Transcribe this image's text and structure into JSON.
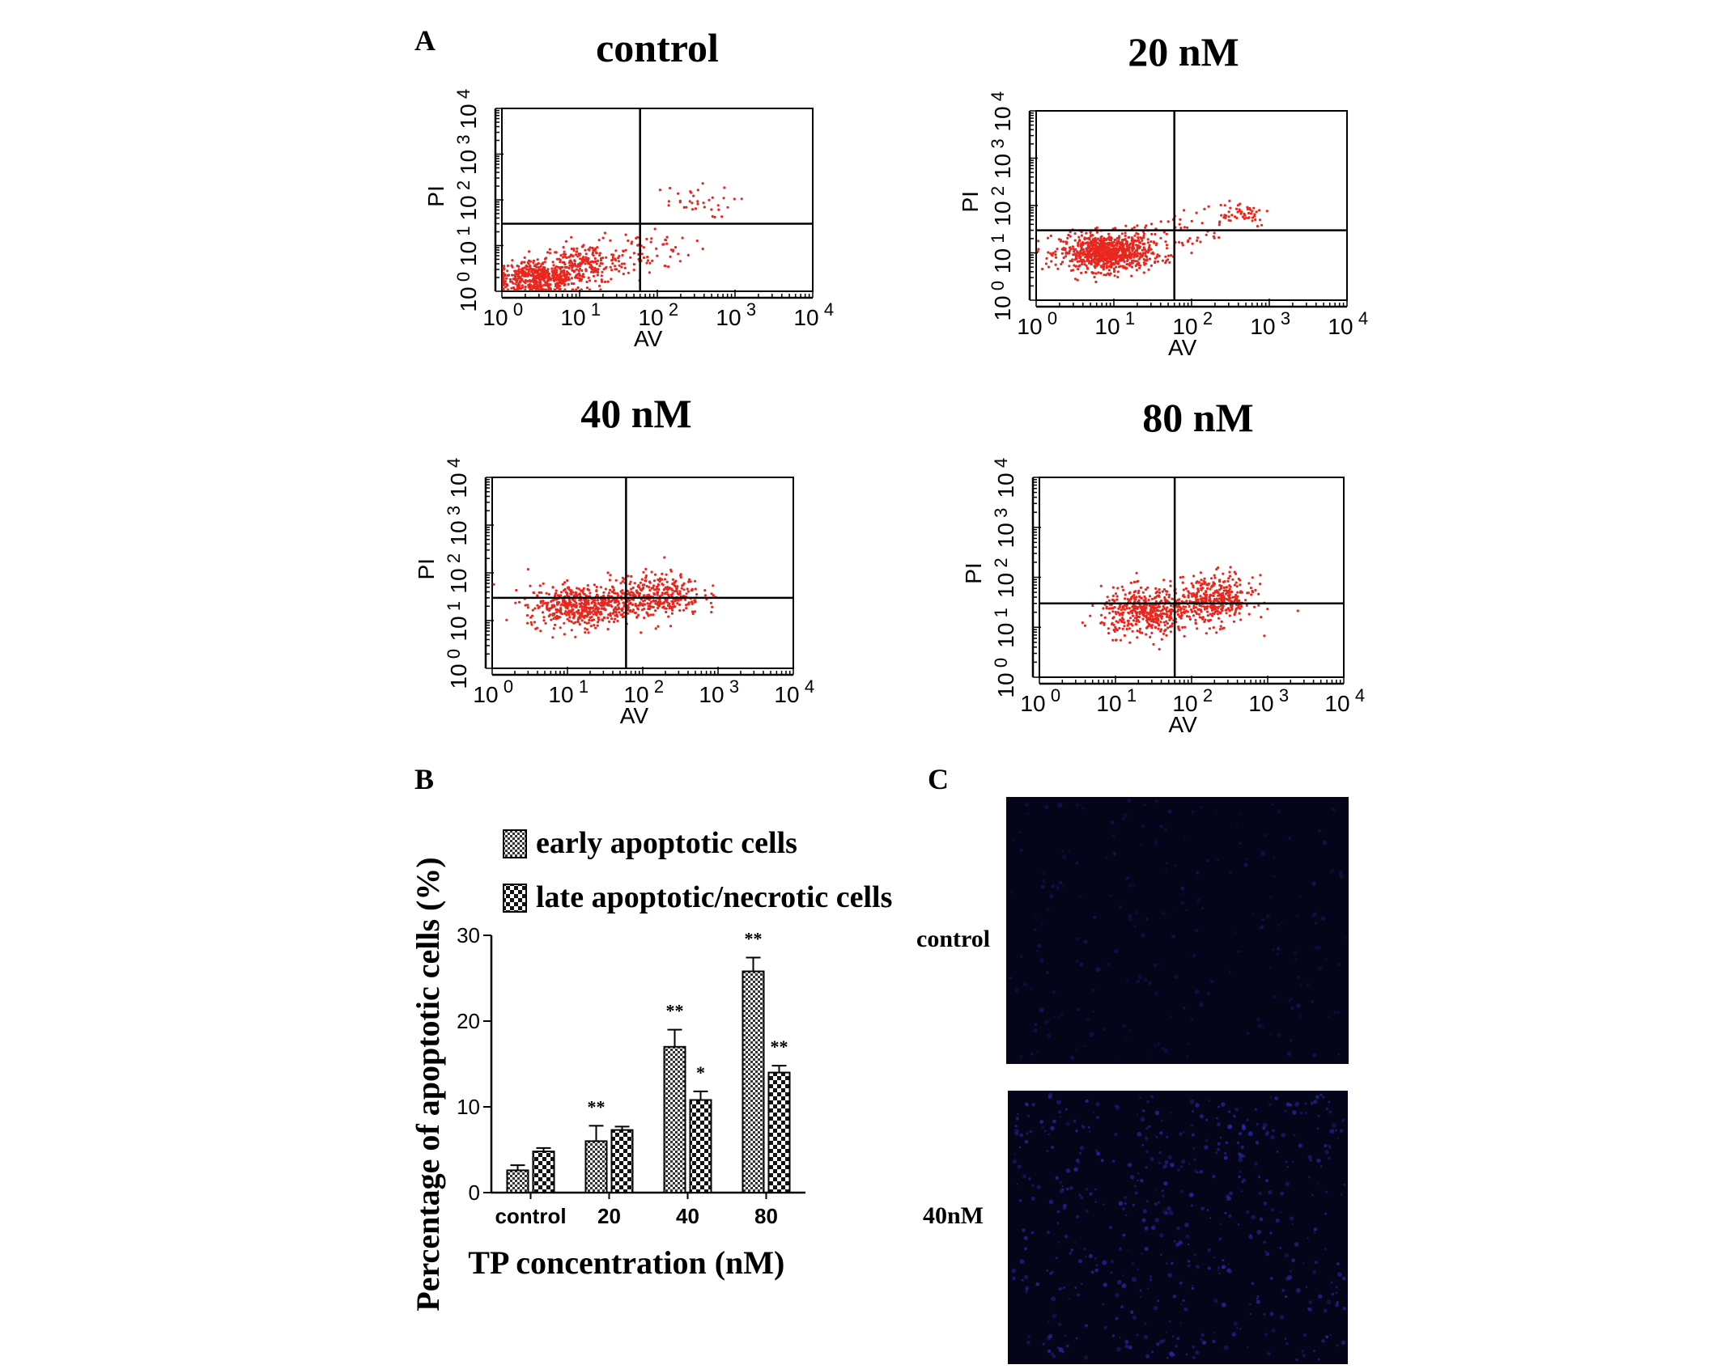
{
  "panels": {
    "a": {
      "letter": "A",
      "plots": [
        {
          "title": "control",
          "xlabel": "AV",
          "ylabel": "PI"
        },
        {
          "title": "20 nM",
          "xlabel": "AV",
          "ylabel": "PI"
        },
        {
          "title": "40 nM",
          "xlabel": "AV",
          "ylabel": "PI"
        },
        {
          "title": "80 nM",
          "xlabel": "AV",
          "ylabel": "PI"
        }
      ],
      "tick_base": "10",
      "tick_exponents": [
        "0",
        "1",
        "2",
        "3",
        "4"
      ],
      "dot_color": "#e8271e"
    },
    "b": {
      "letter": "B"
    },
    "c": {
      "letter": "C",
      "images": [
        {
          "label": "control"
        },
        {
          "label": "40nM"
        }
      ],
      "image_color": "#05051a",
      "dot_color": "#2b2bb0"
    }
  },
  "chart_data": [
    {
      "type": "scatter",
      "panel": "A",
      "title": "control",
      "xlabel": "AV",
      "ylabel": "PI",
      "xscale": "log",
      "yscale": "log",
      "xlim": [
        1,
        10000
      ],
      "ylim": [
        1,
        10000
      ],
      "gate": {
        "x": 60,
        "y": 30
      },
      "clusters": [
        {
          "center": [
            3,
            2
          ],
          "spread": [
            2.2,
            1.6
          ],
          "n": 480
        },
        {
          "center": [
            12,
            4
          ],
          "spread": [
            2.2,
            1.8
          ],
          "n": 200
        },
        {
          "center": [
            60,
            8
          ],
          "spread": [
            2.5,
            2.0
          ],
          "n": 70
        },
        {
          "center": [
            250,
            90
          ],
          "spread": [
            2.2,
            1.6
          ],
          "n": 35
        }
      ]
    },
    {
      "type": "scatter",
      "panel": "A",
      "title": "20 nM",
      "xlabel": "AV",
      "ylabel": "PI",
      "xscale": "log",
      "yscale": "log",
      "xlim": [
        1,
        10000
      ],
      "ylim": [
        1,
        10000
      ],
      "gate": {
        "x": 60,
        "y": 30
      },
      "clusters": [
        {
          "center": [
            8,
            10
          ],
          "spread": [
            2.2,
            1.7
          ],
          "n": 850
        },
        {
          "center": [
            60,
            25
          ],
          "spread": [
            2.2,
            1.9
          ],
          "n": 60
        },
        {
          "center": [
            400,
            70
          ],
          "spread": [
            1.8,
            1.5
          ],
          "n": 55
        }
      ]
    },
    {
      "type": "scatter",
      "panel": "A",
      "title": "40 nM",
      "xlabel": "AV",
      "ylabel": "PI",
      "xscale": "log",
      "yscale": "log",
      "xlim": [
        1,
        10000
      ],
      "ylim": [
        1,
        10000
      ],
      "gate": {
        "x": 60,
        "y": 30
      },
      "clusters": [
        {
          "center": [
            15,
            20
          ],
          "spread": [
            2.6,
            1.8
          ],
          "n": 500
        },
        {
          "center": [
            150,
            35
          ],
          "spread": [
            2.3,
            1.8
          ],
          "n": 350
        }
      ]
    },
    {
      "type": "scatter",
      "panel": "A",
      "title": "80 nM",
      "xlabel": "AV",
      "ylabel": "PI",
      "xscale": "log",
      "yscale": "log",
      "xlim": [
        1,
        10000
      ],
      "ylim": [
        1,
        10000
      ],
      "gate": {
        "x": 60,
        "y": 30
      },
      "clusters": [
        {
          "center": [
            25,
            20
          ],
          "spread": [
            2.2,
            1.9
          ],
          "n": 450
        },
        {
          "center": [
            200,
            35
          ],
          "spread": [
            2.0,
            1.9
          ],
          "n": 400
        }
      ]
    },
    {
      "type": "bar",
      "panel": "B",
      "xlabel": "TP concentration (nM)",
      "ylabel": "Percentage of apoptotic cells (%)",
      "ylim": [
        0,
        30
      ],
      "yticks": [
        "0",
        "10",
        "20",
        "30"
      ],
      "categories": [
        "control",
        "20",
        "40",
        "80"
      ],
      "legend_position": "top",
      "series": [
        {
          "name": "early apoptotic cells",
          "values": [
            2.6,
            6.0,
            17.0,
            25.8
          ],
          "errors": [
            0.6,
            1.8,
            2.0,
            1.6
          ],
          "significance": [
            "",
            "**",
            "**",
            "**"
          ]
        },
        {
          "name": "late apoptotic/necrotic cells",
          "values": [
            4.8,
            7.3,
            10.8,
            14.0
          ],
          "errors": [
            0.4,
            0.4,
            1.0,
            0.8
          ],
          "significance": [
            "",
            "",
            "*",
            "**"
          ]
        }
      ]
    }
  ]
}
